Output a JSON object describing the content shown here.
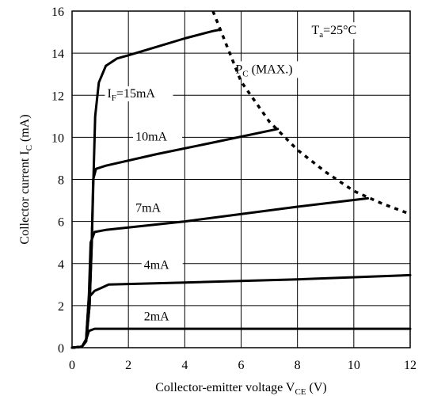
{
  "chart_data": {
    "type": "line",
    "xlabel_main": "Collector-emitter voltage V",
    "xlabel_sub": "CE",
    "xlabel_unit": " (V)",
    "ylabel_main": "Collector current I",
    "ylabel_sub": "C",
    "ylabel_unit": " (mA)",
    "xlim": [
      0,
      12
    ],
    "ylim": [
      0,
      16
    ],
    "xticks": [
      0,
      2,
      4,
      6,
      8,
      10,
      12
    ],
    "yticks": [
      0,
      2,
      4,
      6,
      8,
      10,
      12,
      14,
      16
    ],
    "grid": true,
    "annotations": {
      "ta_main": "T",
      "ta_sub": "a",
      "ta_value": "=25°C",
      "pc_main": "P",
      "pc_sub": "C",
      "pc_value": " (MAX.)"
    },
    "series": [
      {
        "name": "I_F=15mA",
        "label_main": "I",
        "label_sub": "F",
        "label_value": "=15mA",
        "x": [
          0,
          0.35,
          0.5,
          0.62,
          0.7,
          0.76,
          0.82,
          0.95,
          1.2,
          1.6,
          2.0,
          3.0,
          4.0,
          5.0,
          5.2
        ],
        "y": [
          0,
          0.05,
          0.3,
          2.0,
          5.0,
          8.0,
          11.0,
          12.6,
          13.4,
          13.75,
          13.9,
          14.3,
          14.7,
          15.05,
          15.1
        ]
      },
      {
        "name": "10mA",
        "label_main": "10mA",
        "x": [
          0,
          0.35,
          0.5,
          0.62,
          0.7,
          0.75,
          0.85,
          1.2,
          3.0,
          5.0,
          7.3
        ],
        "y": [
          0,
          0.05,
          0.3,
          2.0,
          5.0,
          8.0,
          8.5,
          8.65,
          9.2,
          9.75,
          10.4
        ]
      },
      {
        "name": "7mA",
        "label_main": "7mA",
        "x": [
          0,
          0.35,
          0.5,
          0.6,
          0.66,
          0.8,
          1.2,
          4.0,
          8.0,
          10.5
        ],
        "y": [
          0,
          0.05,
          0.4,
          2.5,
          5.0,
          5.5,
          5.6,
          6.0,
          6.7,
          7.1
        ]
      },
      {
        "name": "4mA",
        "label_main": "4mA",
        "x": [
          0,
          0.35,
          0.5,
          0.6,
          0.8,
          1.3,
          4.0,
          8.0,
          12.0
        ],
        "y": [
          0,
          0.05,
          0.4,
          2.4,
          2.7,
          3.0,
          3.1,
          3.25,
          3.45
        ]
      },
      {
        "name": "2mA",
        "label_main": "2mA",
        "x": [
          0,
          0.35,
          0.48,
          0.6,
          0.8,
          1.2,
          12.0
        ],
        "y": [
          0,
          0.05,
          0.3,
          0.8,
          0.9,
          0.9,
          0.9
        ]
      }
    ],
    "pc_max": {
      "x": [
        5.0,
        6.0,
        7.0,
        8.0,
        9.0,
        10.0,
        11.0,
        12.0
      ],
      "y": [
        16.0,
        12.65,
        10.75,
        9.4,
        8.35,
        7.45,
        6.85,
        6.35
      ]
    }
  }
}
